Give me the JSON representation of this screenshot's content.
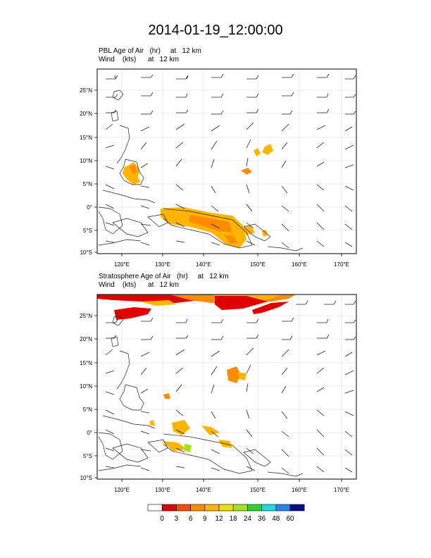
{
  "title": "2014-01-19_12:00:00",
  "panels": [
    {
      "line1": "PBL Age of Air   (hr)     at   12 km",
      "line2": "Wind    (kts)      at   12 km"
    },
    {
      "line1": "Stratosphere Age of Air   (hr)     at   12 km",
      "line2": "Wind    (kts)      at   12 km"
    }
  ],
  "axes": {
    "lon_labels": [
      "120°E",
      "130°E",
      "140°E",
      "150°E",
      "160°E",
      "170°E"
    ],
    "lat_labels": [
      "25°N",
      "20°N",
      "15°N",
      "10°N",
      "5°N",
      "0°",
      "5°S",
      "10°S"
    ]
  },
  "colorbar": {
    "labels": [
      "0",
      "3",
      "6",
      "9",
      "12",
      "18",
      "24",
      "36",
      "48",
      "60"
    ],
    "colors": [
      "#ffffff",
      "#e00000",
      "#ff4a00",
      "#ff8c00",
      "#ffb400",
      "#f0e000",
      "#a8e020",
      "#30d030",
      "#20d8e0",
      "#2a80f0",
      "#0a0a90"
    ]
  },
  "chart_data": {
    "type": "map",
    "lon_range": [
      116,
      173
    ],
    "lat_range": [
      -10,
      29
    ],
    "overlay": "wind barbs"
  }
}
